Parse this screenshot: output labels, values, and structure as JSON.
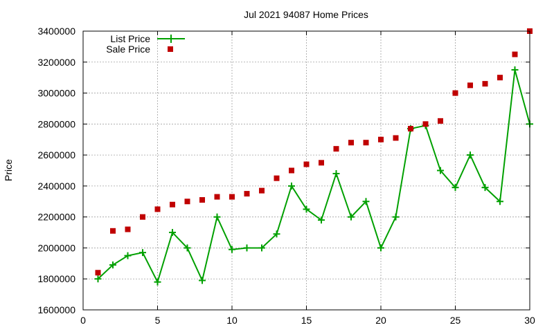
{
  "chart_data": {
    "type": "line",
    "title": "Jul 2021 94087 Home Prices",
    "xlabel": "",
    "ylabel": "Price",
    "xlim": [
      0,
      30
    ],
    "ylim": [
      1600000,
      3400000
    ],
    "x_ticks": [
      0,
      5,
      10,
      15,
      20,
      25,
      30
    ],
    "y_ticks": [
      1600000,
      1800000,
      2000000,
      2200000,
      2400000,
      2600000,
      2800000,
      3000000,
      3200000,
      3400000
    ],
    "grid": true,
    "legend_position": "top-left",
    "series": [
      {
        "name": "List Price",
        "style": "line-with-plus-markers",
        "color": "#00a000",
        "x": [
          1,
          2,
          3,
          4,
          5,
          6,
          7,
          8,
          9,
          10,
          11,
          12,
          13,
          14,
          15,
          16,
          17,
          18,
          19,
          20,
          21,
          22,
          23,
          24,
          25,
          26,
          27,
          28,
          29,
          30
        ],
        "values": [
          1800000,
          1890000,
          1950000,
          1970000,
          1780000,
          2100000,
          2000000,
          1790000,
          2200000,
          1990000,
          2000000,
          2000000,
          2090000,
          2400000,
          2250000,
          2180000,
          2480000,
          2200000,
          2300000,
          2000000,
          2200000,
          2770000,
          2790000,
          2500000,
          2390000,
          2600000,
          2390000,
          2300000,
          3150000,
          2800000
        ]
      },
      {
        "name": "Sale Price",
        "style": "square-markers",
        "color": "#c00000",
        "x": [
          1,
          2,
          3,
          4,
          5,
          6,
          7,
          8,
          9,
          10,
          11,
          12,
          13,
          14,
          15,
          16,
          17,
          18,
          19,
          20,
          21,
          22,
          23,
          24,
          25,
          26,
          27,
          28,
          29,
          30
        ],
        "values": [
          1840000,
          2110000,
          2120000,
          2200000,
          2250000,
          2280000,
          2300000,
          2310000,
          2330000,
          2330000,
          2350000,
          2370000,
          2450000,
          2500000,
          2540000,
          2550000,
          2640000,
          2680000,
          2680000,
          2700000,
          2710000,
          2770000,
          2800000,
          2820000,
          3000000,
          3050000,
          3060000,
          3100000,
          3250000,
          3400000
        ]
      }
    ]
  }
}
